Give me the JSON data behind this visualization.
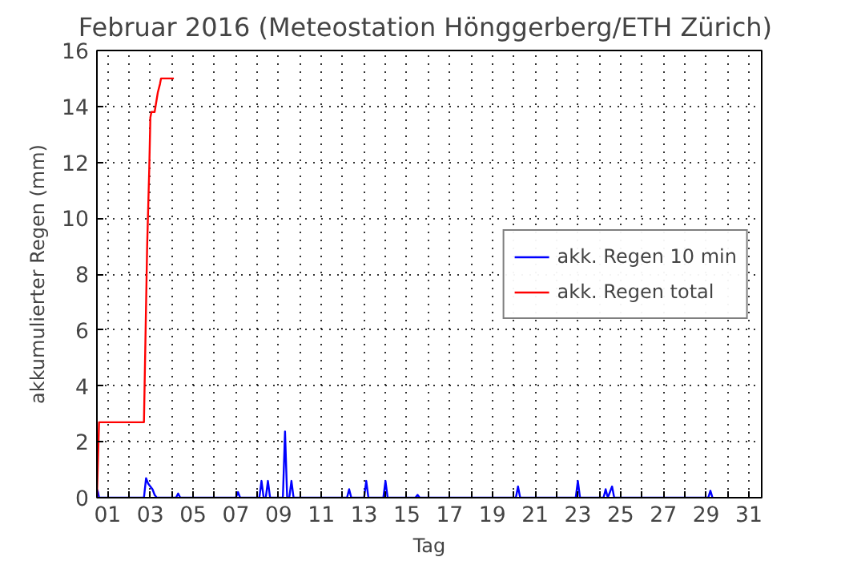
{
  "chart_data": {
    "type": "line",
    "title": "Februar 2016  (Meteostation Hönggerberg/ETH Zürich)",
    "xlabel": "Tag",
    "ylabel": "akkumulierter Regen (mm)",
    "xlim": [
      0.5,
      31.6
    ],
    "ylim": [
      0,
      16
    ],
    "xticks": [
      {
        "value": 1,
        "label": "01"
      },
      {
        "value": 2,
        "label": null
      },
      {
        "value": 3,
        "label": "03"
      },
      {
        "value": 4,
        "label": null
      },
      {
        "value": 5,
        "label": "05"
      },
      {
        "value": 6,
        "label": null
      },
      {
        "value": 7,
        "label": "07"
      },
      {
        "value": 8,
        "label": null
      },
      {
        "value": 9,
        "label": "09"
      },
      {
        "value": 10,
        "label": null
      },
      {
        "value": 11,
        "label": "11"
      },
      {
        "value": 12,
        "label": null
      },
      {
        "value": 13,
        "label": "13"
      },
      {
        "value": 14,
        "label": null
      },
      {
        "value": 15,
        "label": "15"
      },
      {
        "value": 16,
        "label": null
      },
      {
        "value": 17,
        "label": "17"
      },
      {
        "value": 18,
        "label": null
      },
      {
        "value": 19,
        "label": "19"
      },
      {
        "value": 20,
        "label": null
      },
      {
        "value": 21,
        "label": "21"
      },
      {
        "value": 22,
        "label": null
      },
      {
        "value": 23,
        "label": "23"
      },
      {
        "value": 24,
        "label": null
      },
      {
        "value": 25,
        "label": "25"
      },
      {
        "value": 26,
        "label": null
      },
      {
        "value": 27,
        "label": "27"
      },
      {
        "value": 28,
        "label": null
      },
      {
        "value": 29,
        "label": "29"
      },
      {
        "value": 30,
        "label": null
      },
      {
        "value": 31,
        "label": "31"
      }
    ],
    "yticks": [
      0,
      2,
      4,
      6,
      8,
      10,
      12,
      14,
      16
    ],
    "grid": true,
    "legend": "right",
    "line_style": "solid",
    "marker": "none",
    "series": [
      {
        "name": "akk. Regen 10 min",
        "color": "#0000ff",
        "x": [
          0.5,
          0.55,
          0.6,
          0.7,
          2.7,
          2.8,
          2.9,
          3.0,
          3.1,
          3.2,
          3.3,
          4.2,
          4.3,
          4.4,
          7.0,
          7.1,
          7.2,
          8.1,
          8.2,
          8.3,
          8.4,
          8.5,
          8.6,
          9.2,
          9.3,
          9.4,
          9.5,
          9.6,
          9.7,
          12.2,
          12.3,
          12.4,
          13.0,
          13.1,
          13.2,
          13.9,
          14.0,
          14.1,
          15.4,
          15.5,
          15.6,
          20.1,
          20.2,
          20.3,
          22.9,
          23.0,
          23.1,
          24.2,
          24.3,
          24.4,
          24.6,
          24.7,
          29.1,
          29.2,
          29.3
        ],
        "values": [
          0.3,
          0.2,
          0,
          0,
          0,
          0.7,
          0.5,
          0.4,
          0.3,
          0.1,
          0,
          0,
          0.15,
          0,
          0,
          0.2,
          0,
          0,
          0.6,
          0,
          0,
          0.6,
          0,
          0,
          2.37,
          0,
          0,
          0.6,
          0,
          0,
          0.3,
          0,
          0,
          0.6,
          0,
          0,
          0.6,
          0,
          0,
          0.1,
          0,
          0,
          0.4,
          0,
          0,
          0.6,
          0,
          0,
          0.3,
          0,
          0.4,
          0,
          0,
          0.25,
          0
        ]
      },
      {
        "name": "akk. Regen total",
        "color": "#ff0000",
        "x": [
          0.5,
          0.6,
          0.7,
          2.7,
          2.85,
          2.95,
          3.0,
          3.05,
          3.2,
          3.35,
          3.45,
          3.5,
          4.1
        ],
        "values": [
          0,
          2.7,
          2.7,
          2.7,
          9.0,
          11.8,
          13.6,
          13.8,
          13.8,
          14.5,
          14.8,
          15.0,
          15.0
        ]
      }
    ]
  }
}
